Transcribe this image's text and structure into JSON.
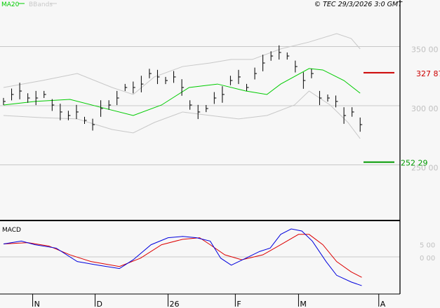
{
  "legend": {
    "ma": "MA20",
    "bbands": "BBands"
  },
  "copyright": "© TEC 29/3/2026 3:0 GMT",
  "colors": {
    "ma": "#00cc00",
    "bbands": "#c8c8c8",
    "macd": "#0000dd",
    "signal": "#dd0000",
    "resistance": "#cc0000",
    "support": "#009900",
    "bars": "#000000",
    "axis_labels": "#c0c0c0"
  },
  "chart_data": [
    {
      "type": "ohlc",
      "title": "",
      "ylim": [
        200,
        375
      ],
      "yticks": [
        {
          "value": 350,
          "label": "350 00"
        },
        {
          "value": 300,
          "label": "300 00"
        },
        {
          "value": 250,
          "label": "250 00"
        }
      ],
      "grid": true,
      "close": [
        303.6,
        309.5,
        312.4,
        306.5,
        306.5,
        309.5,
        300.6,
        294.7,
        291.7,
        294.7,
        287.6,
        284,
        297.6,
        300.6,
        306.5,
        315.4,
        315.4,
        318.3,
        327.2,
        324.3,
        321.3,
        324.3,
        315.4,
        300.6,
        294.7,
        297.6,
        306.5,
        309.5,
        321.3,
        324.3,
        315.4,
        327.2,
        336.1,
        342,
        345,
        342,
        333.1,
        321.3,
        327.2,
        306.5,
        306.5,
        303.6,
        291.7,
        294.7,
        284
      ],
      "ma20": [
        [
          0,
          300.6
        ],
        [
          3.9,
          303.6
        ],
        [
          8.2,
          305.3
        ],
        [
          12.6,
          297.6
        ],
        [
          16,
          291.7
        ],
        [
          19.5,
          300.6
        ],
        [
          22.9,
          315.4
        ],
        [
          26.4,
          318.3
        ],
        [
          29.9,
          312.4
        ],
        [
          32.5,
          309.5
        ],
        [
          34.2,
          318.3
        ],
        [
          37.7,
          331.4
        ],
        [
          39.4,
          330.2
        ],
        [
          42,
          321.3
        ],
        [
          44,
          310.6
        ]
      ],
      "bband_upper": [
        [
          0,
          315.4
        ],
        [
          4.8,
          321.3
        ],
        [
          9.1,
          327.2
        ],
        [
          13.4,
          315.4
        ],
        [
          16,
          309.5
        ],
        [
          18.6,
          324.3
        ],
        [
          22.1,
          333.1
        ],
        [
          25.5,
          336.1
        ],
        [
          28.1,
          339.1
        ],
        [
          30.7,
          339.1
        ],
        [
          34.2,
          348
        ],
        [
          37.7,
          353.8
        ],
        [
          41.1,
          360.9
        ],
        [
          42.9,
          356.8
        ],
        [
          44,
          348
        ]
      ],
      "bband_lower": [
        [
          0,
          291.7
        ],
        [
          4.8,
          289.9
        ],
        [
          9.1,
          288.8
        ],
        [
          13.4,
          279.9
        ],
        [
          16,
          277
        ],
        [
          18.6,
          285.8
        ],
        [
          22.1,
          294.7
        ],
        [
          25.5,
          291.7
        ],
        [
          29,
          288.8
        ],
        [
          32.5,
          291.7
        ],
        [
          35.9,
          300.6
        ],
        [
          37.7,
          312.4
        ],
        [
          40.3,
          300.6
        ],
        [
          42.5,
          285.8
        ],
        [
          44,
          272.2
        ]
      ],
      "resistance": {
        "value": 327.87,
        "label": "327 87"
      },
      "support": {
        "value": 252.29,
        "label": "252 29"
      }
    },
    {
      "type": "line",
      "title": "MACD",
      "ylim": [
        -14,
        13.5
      ],
      "yticks": [
        {
          "value": 5,
          "label": "5 00"
        },
        {
          "value": 0,
          "label": "0 00"
        }
      ],
      "macd": [
        [
          0,
          5
        ],
        [
          2.2,
          6.1
        ],
        [
          3.9,
          4.7
        ],
        [
          6.5,
          3.4
        ],
        [
          9.1,
          -1.8
        ],
        [
          11.7,
          -3.2
        ],
        [
          14.3,
          -4.5
        ],
        [
          16,
          -1.1
        ],
        [
          18.2,
          4.7
        ],
        [
          20.3,
          7.4
        ],
        [
          22.1,
          7.9
        ],
        [
          23.8,
          7.4
        ],
        [
          25.5,
          6.1
        ],
        [
          26.8,
          -0.5
        ],
        [
          28.1,
          -3.2
        ],
        [
          29.9,
          -0.5
        ],
        [
          31.6,
          2.1
        ],
        [
          32.9,
          3.4
        ],
        [
          34.2,
          8.7
        ],
        [
          35.5,
          10.8
        ],
        [
          36.8,
          10
        ],
        [
          38.1,
          6.1
        ],
        [
          39.8,
          -1.8
        ],
        [
          41.1,
          -7.1
        ],
        [
          42.9,
          -9.7
        ],
        [
          44.2,
          -11.1
        ]
      ],
      "signal": [
        [
          0,
          5
        ],
        [
          3,
          5.5
        ],
        [
          5.6,
          4.2
        ],
        [
          8.2,
          0.8
        ],
        [
          10.8,
          -1.8
        ],
        [
          14.3,
          -3.7
        ],
        [
          16.9,
          -0.5
        ],
        [
          19.5,
          4.7
        ],
        [
          22.1,
          6.8
        ],
        [
          24.2,
          7.4
        ],
        [
          25.5,
          4.7
        ],
        [
          27.3,
          0.8
        ],
        [
          29.4,
          -1.1
        ],
        [
          32,
          0.8
        ],
        [
          34.2,
          4.7
        ],
        [
          36.4,
          8.7
        ],
        [
          37.7,
          8.7
        ],
        [
          39.4,
          4.7
        ],
        [
          41.1,
          -1.8
        ],
        [
          42.9,
          -5.8
        ],
        [
          44.2,
          -7.9
        ]
      ]
    }
  ],
  "x_axis": {
    "ticks": [
      {
        "pos": 3.6,
        "label": "N"
      },
      {
        "pos": 11.3,
        "label": "D"
      },
      {
        "pos": 20.3,
        "label": "26"
      },
      {
        "pos": 28.6,
        "label": "F"
      },
      {
        "pos": 36.4,
        "label": "M"
      },
      {
        "pos": 46.3,
        "label": "A"
      }
    ]
  }
}
